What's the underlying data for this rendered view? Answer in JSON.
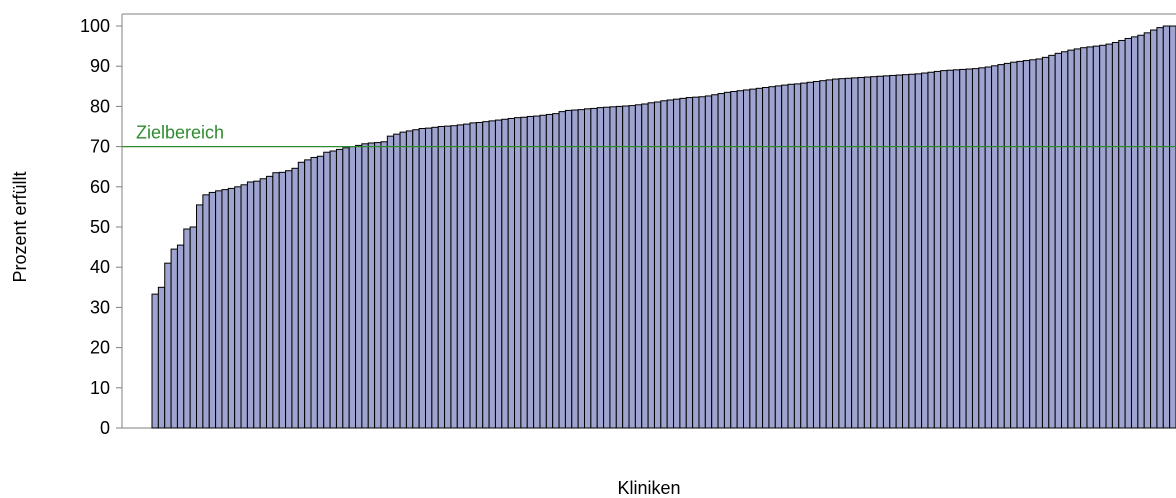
{
  "chart_data": {
    "type": "bar",
    "xlabel": "Kliniken",
    "ylabel": "Prozent erfüllt",
    "ylim": [
      0,
      100
    ],
    "yticks": [
      0,
      10,
      20,
      30,
      40,
      50,
      60,
      70,
      80,
      90,
      100
    ],
    "grid": false,
    "legend": "none",
    "colors": {
      "bar": "#9fa3cf",
      "bar_edge": "#000000",
      "reference": "#2e8b2e",
      "axis": "#808080"
    },
    "reference_line": {
      "value": 70,
      "label": "Zielbereich"
    },
    "categories_visible": false,
    "values": [
      33.3,
      35.0,
      41.0,
      44.5,
      45.5,
      49.5,
      50.0,
      55.5,
      58.0,
      58.6,
      59.0,
      59.3,
      59.6,
      60.0,
      60.5,
      61.2,
      61.4,
      62.0,
      62.6,
      63.5,
      63.6,
      64.0,
      64.6,
      66.1,
      66.7,
      67.3,
      67.6,
      68.6,
      68.9,
      69.3,
      69.7,
      70.0,
      70.3,
      70.7,
      70.9,
      71.0,
      71.2,
      72.6,
      73.1,
      73.6,
      73.9,
      74.2,
      74.5,
      74.6,
      74.8,
      75.0,
      75.1,
      75.2,
      75.4,
      75.6,
      75.9,
      76.0,
      76.2,
      76.4,
      76.6,
      76.8,
      77.0,
      77.2,
      77.3,
      77.5,
      77.6,
      77.8,
      78.0,
      78.2,
      78.7,
      79.0,
      79.1,
      79.2,
      79.4,
      79.5,
      79.7,
      79.8,
      79.9,
      80.0,
      80.1,
      80.2,
      80.4,
      80.6,
      80.9,
      81.1,
      81.4,
      81.6,
      81.8,
      82.0,
      82.2,
      82.3,
      82.4,
      82.6,
      82.9,
      83.2,
      83.5,
      83.7,
      83.9,
      84.1,
      84.3,
      84.5,
      84.7,
      84.9,
      85.1,
      85.3,
      85.5,
      85.6,
      85.8,
      86.0,
      86.2,
      86.4,
      86.6,
      86.8,
      86.9,
      87.0,
      87.1,
      87.2,
      87.3,
      87.4,
      87.5,
      87.6,
      87.7,
      87.8,
      87.9,
      88.0,
      88.1,
      88.3,
      88.5,
      88.7,
      88.9,
      89.0,
      89.1,
      89.2,
      89.3,
      89.4,
      89.6,
      89.8,
      90.1,
      90.4,
      90.7,
      91.0,
      91.2,
      91.4,
      91.6,
      91.8,
      92.2,
      92.7,
      93.2,
      93.6,
      94.0,
      94.3,
      94.6,
      94.8,
      95.0,
      95.2,
      95.5,
      95.9,
      96.4,
      96.9,
      97.3,
      97.7,
      98.3,
      99.0,
      99.6,
      100.0,
      100.0
    ]
  }
}
